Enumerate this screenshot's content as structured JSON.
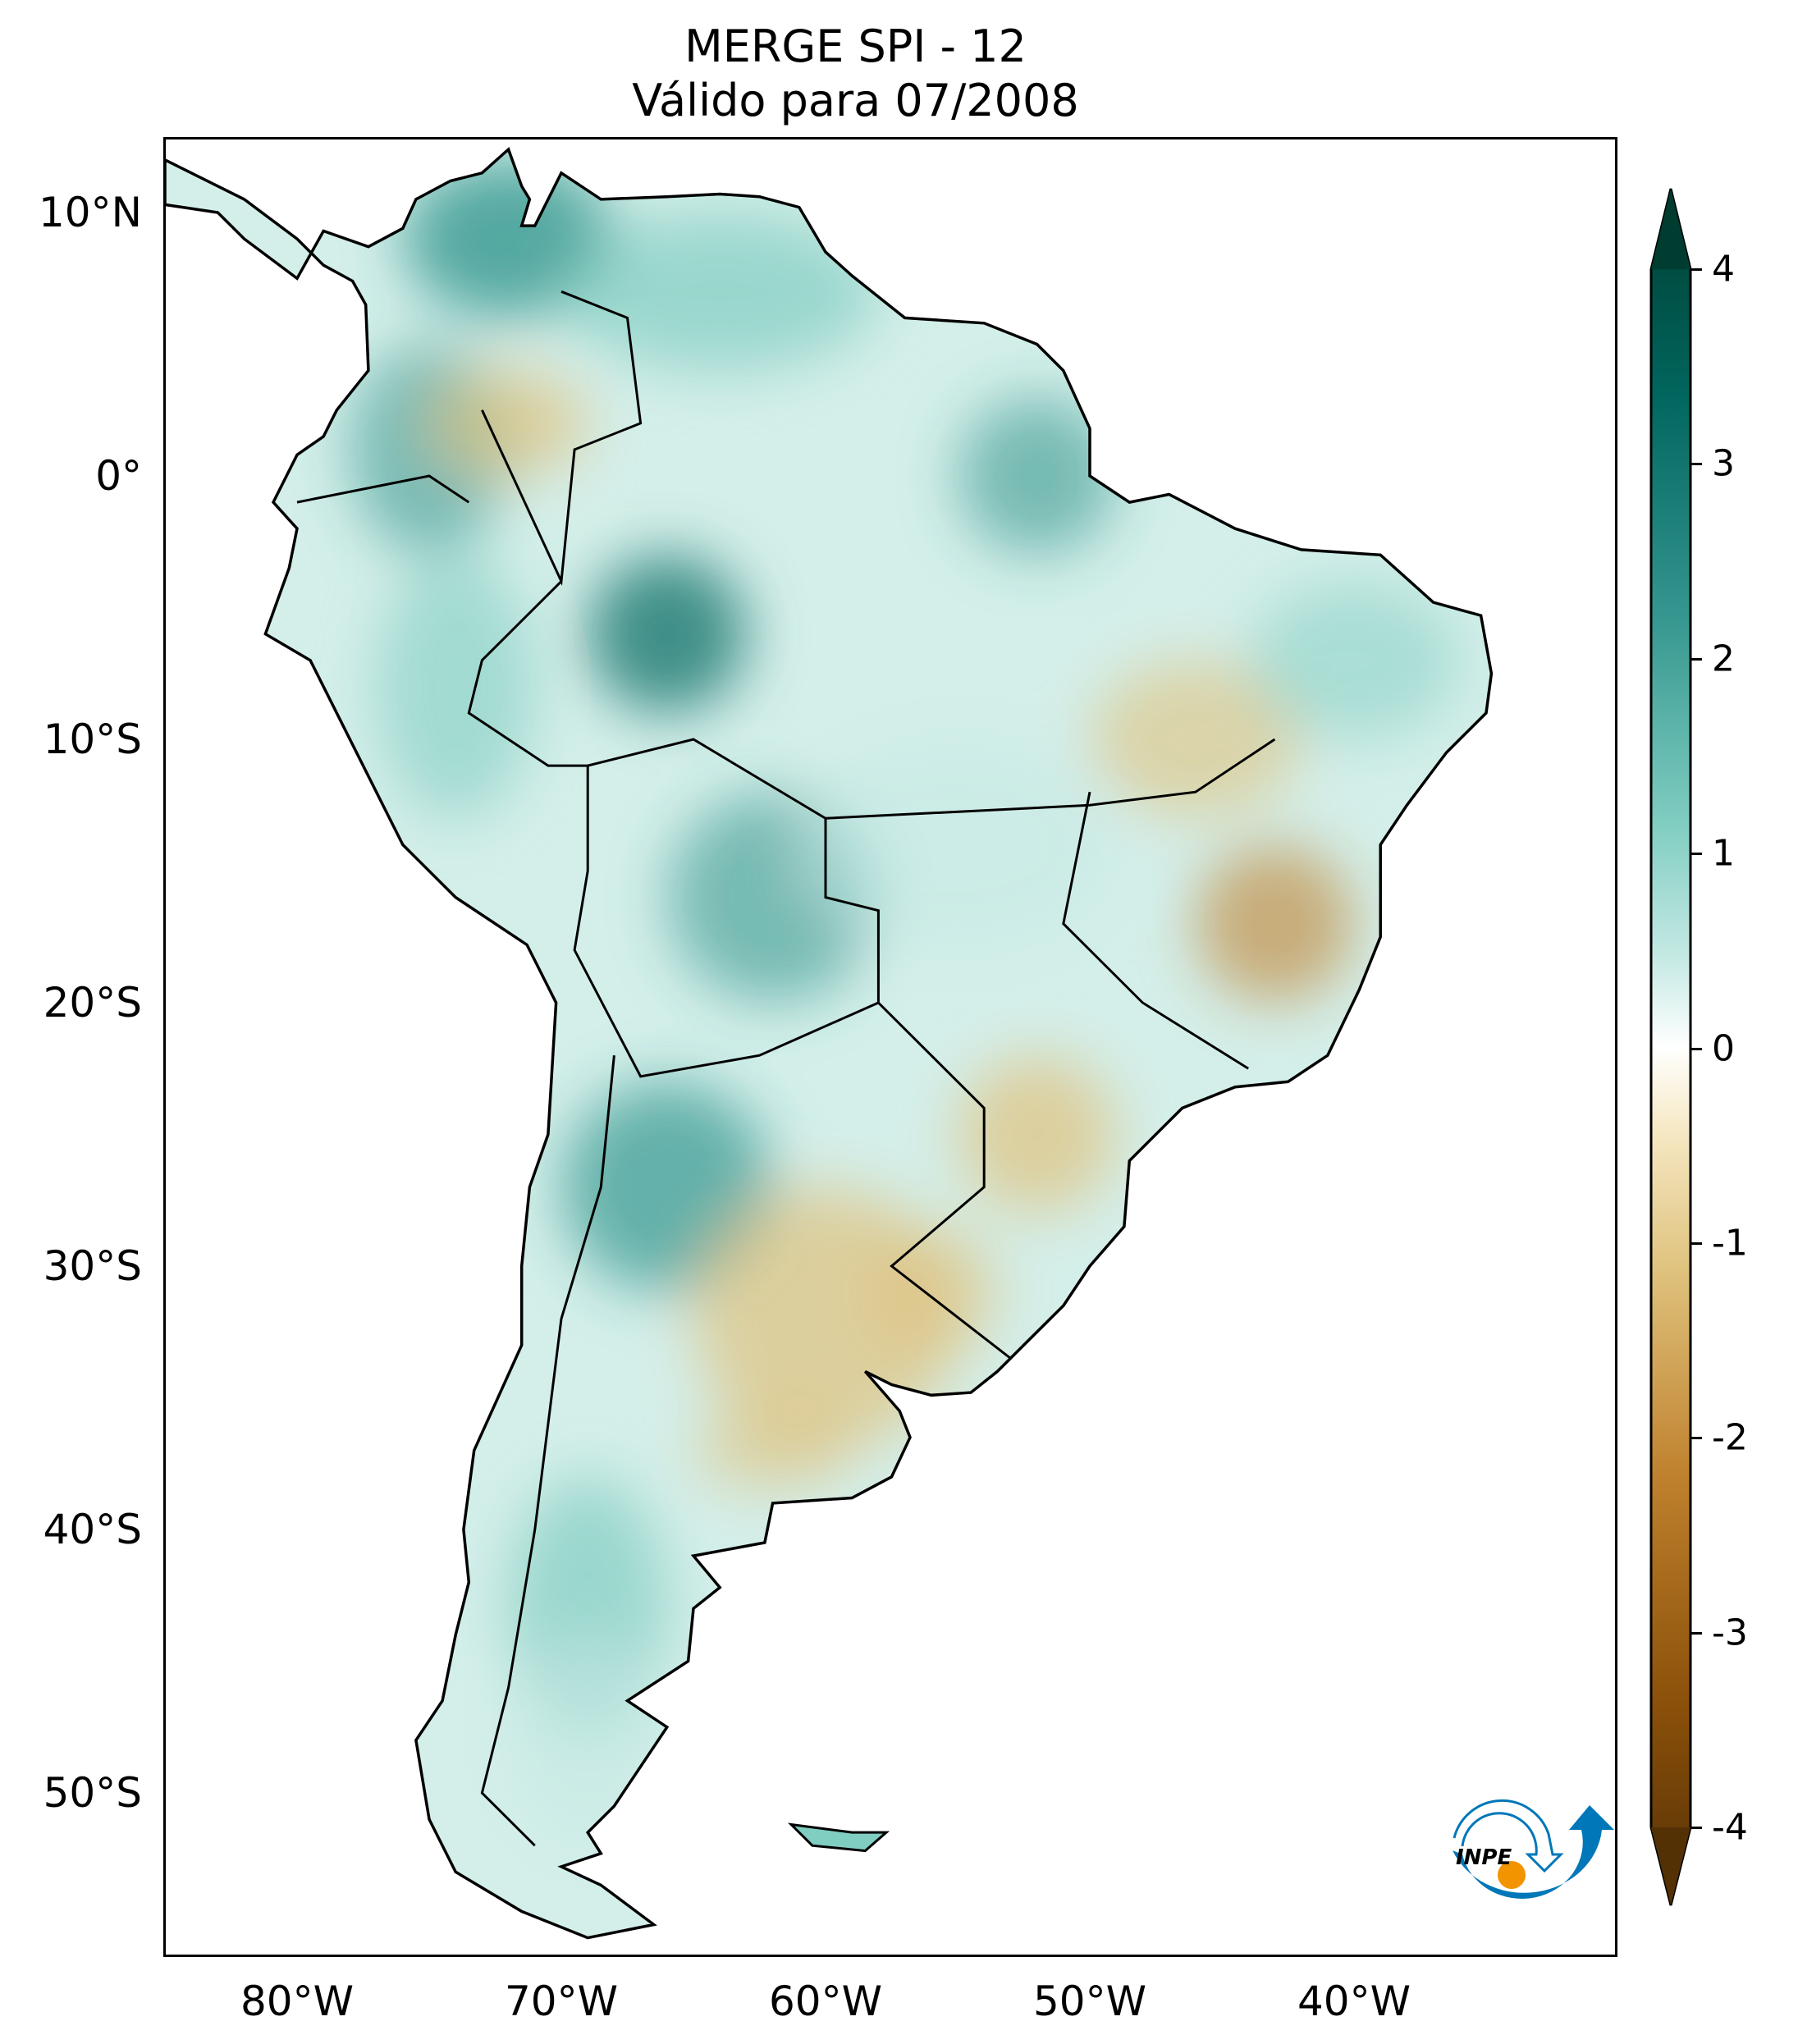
{
  "title": {
    "line1": "MERGE   SPI - 12",
    "line2": "Válido para 07/2008"
  },
  "axes": {
    "lat_labels": [
      {
        "value": 10,
        "label": "10°N"
      },
      {
        "value": 0,
        "label": "0°"
      },
      {
        "value": -10,
        "label": "10°S"
      },
      {
        "value": -20,
        "label": "20°S"
      },
      {
        "value": -30,
        "label": "30°S"
      },
      {
        "value": -40,
        "label": "40°S"
      },
      {
        "value": -50,
        "label": "50°S"
      }
    ],
    "lon_labels": [
      {
        "value": -80,
        "label": "80°W"
      },
      {
        "value": -70,
        "label": "70°W"
      },
      {
        "value": -60,
        "label": "60°W"
      },
      {
        "value": -50,
        "label": "50°W"
      },
      {
        "value": -40,
        "label": "40°W"
      }
    ]
  },
  "colorbar": {
    "ticks": [
      {
        "value": 4,
        "label": "4"
      },
      {
        "value": 3,
        "label": "3"
      },
      {
        "value": 2,
        "label": "2"
      },
      {
        "value": 1,
        "label": "1"
      },
      {
        "value": 0,
        "label": "0"
      },
      {
        "value": -1,
        "label": "-1"
      },
      {
        "value": -2,
        "label": "-2"
      },
      {
        "value": -3,
        "label": "-3"
      },
      {
        "value": -4,
        "label": "-4"
      }
    ],
    "range": [
      -4,
      4
    ],
    "colors": {
      "wet": "#003c30",
      "dry": "#543005",
      "neutral": "#f5f5f5"
    }
  },
  "logo": {
    "text": "INPE",
    "blue": "#0077b8",
    "orange": "#f29400"
  }
}
